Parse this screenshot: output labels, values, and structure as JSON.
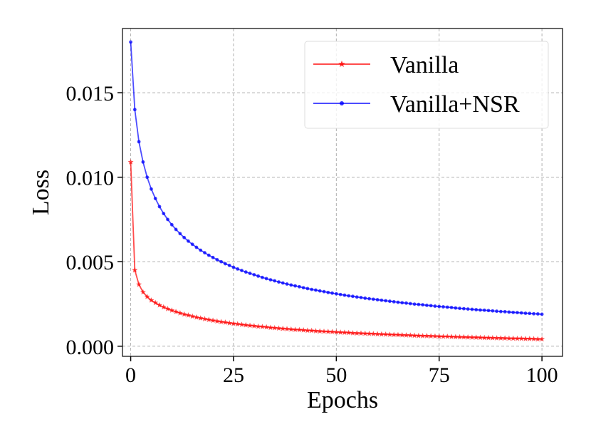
{
  "chart_data": {
    "type": "line",
    "title": "",
    "xlabel": "Epochs",
    "ylabel": "Loss",
    "xlim": [
      -2,
      105
    ],
    "ylim": [
      -0.0006,
      0.0188
    ],
    "xticks": [
      0,
      25,
      50,
      75,
      100
    ],
    "xtick_labels": [
      "0",
      "25",
      "50",
      "75",
      "100"
    ],
    "yticks": [
      0.0,
      0.005,
      0.01,
      0.015
    ],
    "ytick_labels": [
      "0.000",
      "0.005",
      "0.010",
      "0.015"
    ],
    "grid": true,
    "legend_position": "top-right",
    "x": [
      0,
      1,
      2,
      3,
      4,
      5,
      6,
      7,
      8,
      9,
      10,
      11,
      12,
      13,
      14,
      15,
      16,
      17,
      18,
      19,
      20,
      21,
      22,
      23,
      24,
      25,
      26,
      27,
      28,
      29,
      30,
      31,
      32,
      33,
      34,
      35,
      36,
      37,
      38,
      39,
      40,
      41,
      42,
      43,
      44,
      45,
      46,
      47,
      48,
      49,
      50,
      51,
      52,
      53,
      54,
      55,
      56,
      57,
      58,
      59,
      60,
      61,
      62,
      63,
      64,
      65,
      66,
      67,
      68,
      69,
      70,
      71,
      72,
      73,
      74,
      75,
      76,
      77,
      78,
      79,
      80,
      81,
      82,
      83,
      84,
      85,
      86,
      87,
      88,
      89,
      90,
      91,
      92,
      93,
      94,
      95,
      96,
      97,
      98,
      99,
      100
    ],
    "series": [
      {
        "name": "Vanilla",
        "color": "#ff0000",
        "marker": "star",
        "values": [
          0.0109,
          0.0045,
          0.00365,
          0.0032,
          0.00293,
          0.00272,
          0.00257,
          0.00243,
          0.00231,
          0.00221,
          0.00212,
          0.00204,
          0.00196,
          0.00189,
          0.00183,
          0.00177,
          0.00171,
          0.00166,
          0.00161,
          0.00157,
          0.00152,
          0.00148,
          0.00144,
          0.00141,
          0.00137,
          0.00134,
          0.00131,
          0.00128,
          0.00125,
          0.00122,
          0.0012,
          0.00117,
          0.00115,
          0.00113,
          0.0011,
          0.00108,
          0.00106,
          0.00104,
          0.00102,
          0.001,
          0.00098,
          0.00097,
          0.00095,
          0.00093,
          0.00092,
          0.0009,
          0.00089,
          0.00087,
          0.00086,
          0.00085,
          0.00083,
          0.00082,
          0.00081,
          0.0008,
          0.00078,
          0.00077,
          0.00076,
          0.00075,
          0.00074,
          0.00073,
          0.00072,
          0.00071,
          0.0007,
          0.00069,
          0.00068,
          0.00067,
          0.00066,
          0.00065,
          0.00064,
          0.00063,
          0.00062,
          0.00061,
          0.00061,
          0.0006,
          0.00059,
          0.00058,
          0.00057,
          0.00057,
          0.00056,
          0.00055,
          0.00054,
          0.00054,
          0.00053,
          0.00052,
          0.00052,
          0.00051,
          0.0005,
          0.0005,
          0.00049,
          0.00048,
          0.00048,
          0.00047,
          0.00046,
          0.00046,
          0.00045,
          0.00045,
          0.00044,
          0.00044,
          0.00043,
          0.00042,
          0.00042
        ]
      },
      {
        "name": "Vanilla+NSR",
        "color": "#0000ff",
        "marker": "dot",
        "values": [
          0.018,
          0.014,
          0.0121,
          0.0109,
          0.01,
          0.0093,
          0.00874,
          0.00826,
          0.00785,
          0.0075,
          0.00719,
          0.00691,
          0.00666,
          0.00643,
          0.00622,
          0.00603,
          0.00585,
          0.00568,
          0.00553,
          0.00538,
          0.00525,
          0.00512,
          0.005,
          0.00488,
          0.00478,
          0.00467,
          0.00457,
          0.00448,
          0.00439,
          0.00431,
          0.00423,
          0.00415,
          0.00407,
          0.004,
          0.00393,
          0.00387,
          0.0038,
          0.00374,
          0.00368,
          0.00362,
          0.00357,
          0.00352,
          0.00346,
          0.00341,
          0.00336,
          0.00332,
          0.00327,
          0.00323,
          0.00318,
          0.00314,
          0.0031,
          0.00306,
          0.00302,
          0.00298,
          0.00295,
          0.00291,
          0.00288,
          0.00284,
          0.00281,
          0.00278,
          0.00275,
          0.00272,
          0.00269,
          0.00266,
          0.00263,
          0.0026,
          0.00257,
          0.00255,
          0.00252,
          0.00249,
          0.00247,
          0.00245,
          0.00242,
          0.0024,
          0.00237,
          0.00235,
          0.00233,
          0.00231,
          0.00229,
          0.00226,
          0.00224,
          0.00222,
          0.0022,
          0.00218,
          0.00216,
          0.00214,
          0.00213,
          0.00211,
          0.00209,
          0.00207,
          0.00205,
          0.00204,
          0.00202,
          0.002,
          0.00199,
          0.00197,
          0.00195,
          0.00194,
          0.00192,
          0.00191,
          0.00189
        ]
      }
    ]
  }
}
